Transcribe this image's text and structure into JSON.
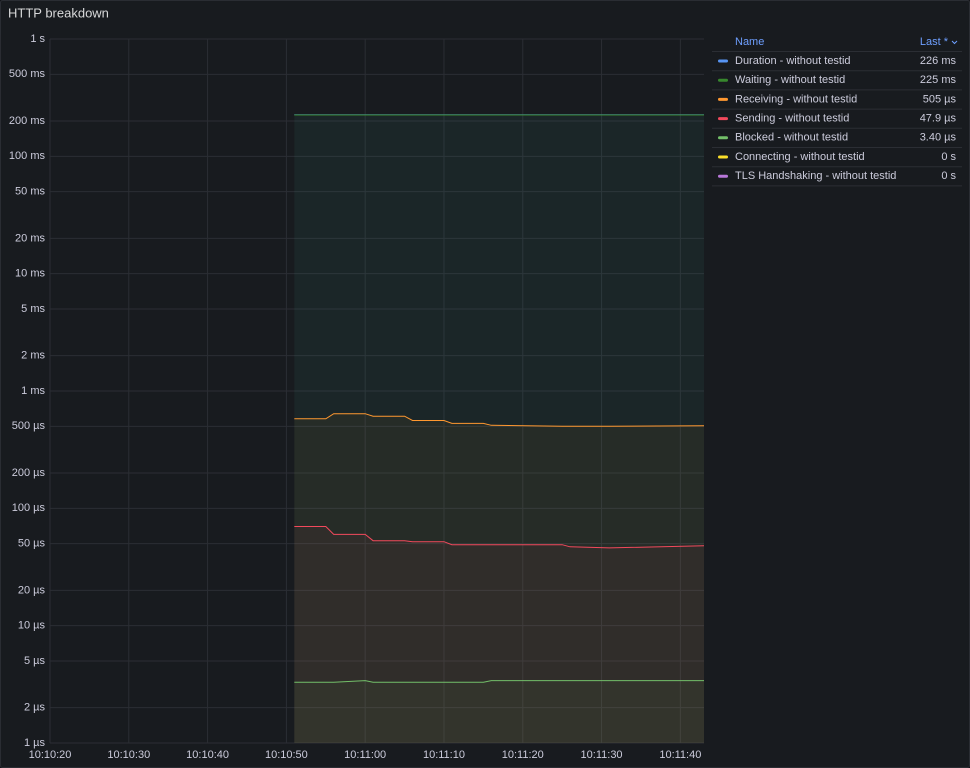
{
  "chart_data": {
    "type": "line",
    "title": "HTTP breakdown",
    "log_scale": true,
    "grid": true,
    "legend_position": "right",
    "legend_headers": [
      "Name",
      "Last *"
    ],
    "x": [
      "10:10:51",
      "10:10:55",
      "10:10:56",
      "10:11:00",
      "10:11:01",
      "10:11:05",
      "10:11:06",
      "10:11:10",
      "10:11:11",
      "10:11:15",
      "10:11:16",
      "10:11:25",
      "10:11:26",
      "10:11:31",
      "10:11:43"
    ],
    "xlim": [
      "10:10:20",
      "10:11:43"
    ],
    "xticks": [
      "10:10:20",
      "10:10:30",
      "10:10:40",
      "10:10:50",
      "10:11:00",
      "10:11:10",
      "10:11:20",
      "10:11:30",
      "10:11:40"
    ],
    "ylim": [
      1e-06,
      1
    ],
    "yticks": [
      {
        "value": 1,
        "label": "1 s"
      },
      {
        "value": 0.5,
        "label": "500 ms"
      },
      {
        "value": 0.2,
        "label": "200 ms"
      },
      {
        "value": 0.1,
        "label": "100 ms"
      },
      {
        "value": 0.05,
        "label": "50 ms"
      },
      {
        "value": 0.02,
        "label": "20 ms"
      },
      {
        "value": 0.01,
        "label": "10 ms"
      },
      {
        "value": 0.005,
        "label": "5 ms"
      },
      {
        "value": 0.002,
        "label": "2 ms"
      },
      {
        "value": 0.001,
        "label": "1 ms"
      },
      {
        "value": 0.0005,
        "label": "500 µs"
      },
      {
        "value": 0.0002,
        "label": "200 µs"
      },
      {
        "value": 0.0001,
        "label": "100 µs"
      },
      {
        "value": 5e-05,
        "label": "50 µs"
      },
      {
        "value": 2e-05,
        "label": "20 µs"
      },
      {
        "value": 1e-05,
        "label": "10 µs"
      },
      {
        "value": 5e-06,
        "label": "5 µs"
      },
      {
        "value": 2e-06,
        "label": "2 µs"
      },
      {
        "value": 1e-06,
        "label": "1 µs"
      }
    ],
    "series": [
      {
        "name": "Duration - without testid",
        "color": "#5794f2",
        "last": 0.226,
        "last_label": "226 ms",
        "values": [
          0.226,
          0.226,
          0.226,
          0.226,
          0.226,
          0.226,
          0.226,
          0.226,
          0.226,
          0.226,
          0.226,
          0.226,
          0.226,
          0.226,
          0.226
        ]
      },
      {
        "name": "Waiting - without testid",
        "color": "#37872d",
        "last": 0.225,
        "last_label": "225 ms",
        "values": [
          0.225,
          0.225,
          0.225,
          0.225,
          0.225,
          0.225,
          0.225,
          0.225,
          0.225,
          0.225,
          0.225,
          0.225,
          0.225,
          0.225,
          0.225
        ]
      },
      {
        "name": "Receiving - without testid",
        "color": "#ff9830",
        "last": 0.000505,
        "last_label": "505 µs",
        "values": [
          0.00058,
          0.00058,
          0.00064,
          0.00064,
          0.00061,
          0.00061,
          0.00056,
          0.00056,
          0.00053,
          0.00053,
          0.00051,
          0.0005,
          0.0005,
          0.0005,
          0.000505
        ]
      },
      {
        "name": "Sending - without testid",
        "color": "#f2495c",
        "last": 4.79e-05,
        "last_label": "47.9 µs",
        "values": [
          7e-05,
          7e-05,
          6e-05,
          6e-05,
          5.3e-05,
          5.3e-05,
          5.2e-05,
          5.2e-05,
          4.9e-05,
          4.9e-05,
          4.9e-05,
          4.9e-05,
          4.7e-05,
          4.6e-05,
          4.79e-05
        ]
      },
      {
        "name": "Blocked - without testid",
        "color": "#73bf69",
        "last": 3.4e-06,
        "last_label": "3.40 µs",
        "values": [
          3.3e-06,
          3.3e-06,
          3.3e-06,
          3.4e-06,
          3.3e-06,
          3.3e-06,
          3.3e-06,
          3.3e-06,
          3.3e-06,
          3.3e-06,
          3.4e-06,
          3.4e-06,
          3.4e-06,
          3.4e-06,
          3.4e-06
        ]
      },
      {
        "name": "Connecting - without testid",
        "color": "#fade2a",
        "last": 0,
        "last_label": "0 s"
      },
      {
        "name": "TLS Handshaking - without testid",
        "color": "#b877d9",
        "last": 0,
        "last_label": "0 s"
      }
    ]
  }
}
